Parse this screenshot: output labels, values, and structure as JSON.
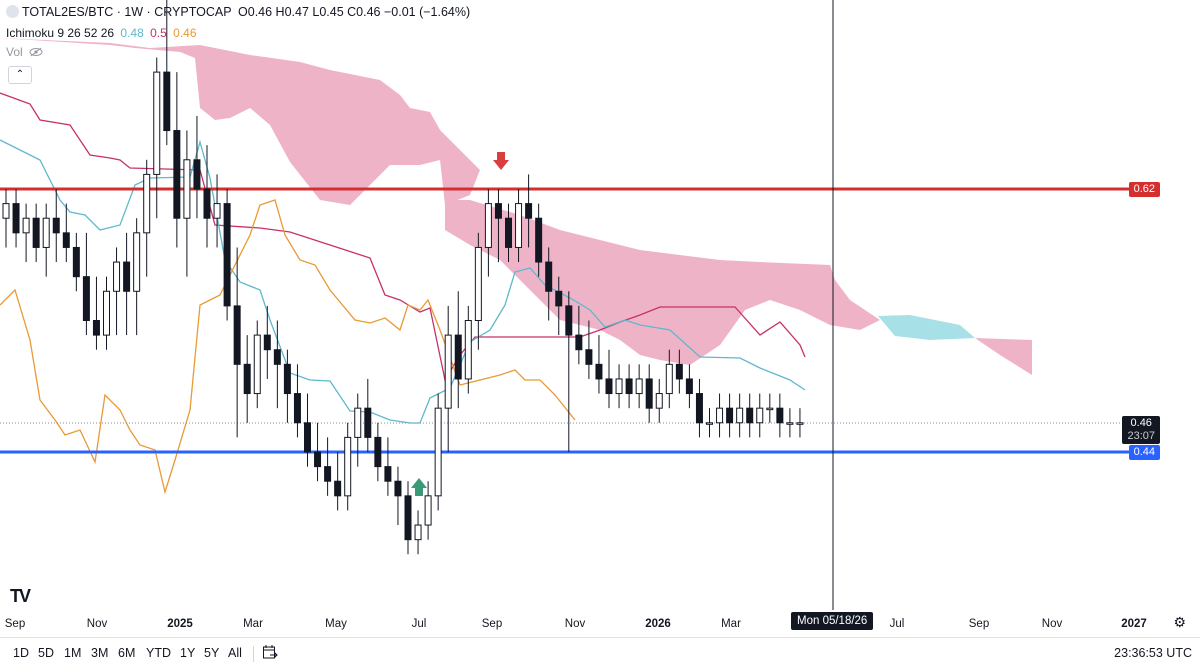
{
  "header": {
    "symbol": "TOTAL2ES/BTC · 1W · CRYPTOCAP",
    "ohlc": "O0.46 H0.47 L0.45 C0.46 −0.01 (−1.64%)",
    "indicator_name": "Ichimoku 9 26 52 26",
    "indicator_v1": "0.48",
    "indicator_v2": "0.5",
    "indicator_v3": "0.46",
    "vol_label": "Vol"
  },
  "price_tags": {
    "red_level": "0.62",
    "current_price": "0.46",
    "countdown": "23:07",
    "blue_level": "0.44"
  },
  "x_axis": [
    {
      "label": "Sep",
      "bold": false
    },
    {
      "label": "Nov",
      "bold": false
    },
    {
      "label": "2025",
      "bold": true
    },
    {
      "label": "Mar",
      "bold": false
    },
    {
      "label": "May",
      "bold": false
    },
    {
      "label": "Jul",
      "bold": false
    },
    {
      "label": "Sep",
      "bold": false
    },
    {
      "label": "Nov",
      "bold": false
    },
    {
      "label": "2026",
      "bold": true
    },
    {
      "label": "Mar",
      "bold": false
    },
    {
      "label": "Jul",
      "bold": false
    },
    {
      "label": "Sep",
      "bold": false
    },
    {
      "label": "Nov",
      "bold": false
    },
    {
      "label": "2027",
      "bold": true
    }
  ],
  "crosshair_date": "Mon 05/18/26",
  "ranges": [
    "1D",
    "5D",
    "1M",
    "3M",
    "6M",
    "YTD",
    "1Y",
    "5Y",
    "All"
  ],
  "clock": "23:36:53 UTC",
  "logo": "TV",
  "colors": {
    "red_line": "#d32f2f",
    "blue_line": "#2962ff",
    "cloud_bear": "#efb3c8",
    "cloud_bull": "#a8e0e8",
    "tenkan": "#5fb8cc",
    "kijun": "#c8306a",
    "chikou": "#e89a35",
    "arrow_down": "#d84040",
    "arrow_up": "#3a9a78"
  },
  "chart_data": {
    "type": "candlestick",
    "horizontal_levels": [
      0.62,
      0.44
    ],
    "candles_ohlc": [
      [
        0.6,
        0.62,
        0.58,
        0.61
      ],
      [
        0.61,
        0.62,
        0.58,
        0.59
      ],
      [
        0.59,
        0.61,
        0.57,
        0.6
      ],
      [
        0.6,
        0.61,
        0.57,
        0.58
      ],
      [
        0.58,
        0.61,
        0.56,
        0.6
      ],
      [
        0.6,
        0.62,
        0.57,
        0.59
      ],
      [
        0.59,
        0.61,
        0.57,
        0.58
      ],
      [
        0.58,
        0.59,
        0.55,
        0.56
      ],
      [
        0.56,
        0.59,
        0.52,
        0.53
      ],
      [
        0.53,
        0.56,
        0.51,
        0.52
      ],
      [
        0.52,
        0.56,
        0.51,
        0.55
      ],
      [
        0.55,
        0.58,
        0.52,
        0.57
      ],
      [
        0.57,
        0.59,
        0.52,
        0.55
      ],
      [
        0.55,
        0.6,
        0.52,
        0.59
      ],
      [
        0.59,
        0.64,
        0.56,
        0.63
      ],
      [
        0.63,
        0.71,
        0.6,
        0.7
      ],
      [
        0.7,
        0.75,
        0.65,
        0.66
      ],
      [
        0.66,
        0.7,
        0.58,
        0.6
      ],
      [
        0.6,
        0.66,
        0.56,
        0.64
      ],
      [
        0.64,
        0.67,
        0.6,
        0.62
      ],
      [
        0.62,
        0.65,
        0.58,
        0.6
      ],
      [
        0.6,
        0.63,
        0.58,
        0.61
      ],
      [
        0.61,
        0.62,
        0.53,
        0.54
      ],
      [
        0.54,
        0.58,
        0.45,
        0.5
      ],
      [
        0.5,
        0.52,
        0.46,
        0.48
      ],
      [
        0.48,
        0.53,
        0.47,
        0.52
      ],
      [
        0.52,
        0.54,
        0.49,
        0.51
      ],
      [
        0.51,
        0.53,
        0.47,
        0.5
      ],
      [
        0.5,
        0.51,
        0.46,
        0.48
      ],
      [
        0.48,
        0.5,
        0.45,
        0.46
      ],
      [
        0.46,
        0.48,
        0.43,
        0.44
      ],
      [
        0.44,
        0.46,
        0.42,
        0.43
      ],
      [
        0.43,
        0.45,
        0.41,
        0.42
      ],
      [
        0.42,
        0.44,
        0.4,
        0.41
      ],
      [
        0.41,
        0.46,
        0.4,
        0.45
      ],
      [
        0.45,
        0.48,
        0.43,
        0.47
      ],
      [
        0.47,
        0.49,
        0.44,
        0.45
      ],
      [
        0.45,
        0.46,
        0.42,
        0.43
      ],
      [
        0.43,
        0.45,
        0.41,
        0.42
      ],
      [
        0.42,
        0.43,
        0.39,
        0.41
      ],
      [
        0.41,
        0.42,
        0.37,
        0.38
      ],
      [
        0.38,
        0.4,
        0.37,
        0.39
      ],
      [
        0.39,
        0.42,
        0.38,
        0.41
      ],
      [
        0.41,
        0.48,
        0.4,
        0.47
      ],
      [
        0.47,
        0.54,
        0.44,
        0.52
      ],
      [
        0.52,
        0.55,
        0.47,
        0.49
      ],
      [
        0.49,
        0.54,
        0.48,
        0.53
      ],
      [
        0.53,
        0.59,
        0.51,
        0.58
      ],
      [
        0.58,
        0.62,
        0.56,
        0.61
      ],
      [
        0.61,
        0.62,
        0.57,
        0.6
      ],
      [
        0.6,
        0.61,
        0.57,
        0.58
      ],
      [
        0.58,
        0.62,
        0.57,
        0.61
      ],
      [
        0.61,
        0.63,
        0.58,
        0.6
      ],
      [
        0.6,
        0.61,
        0.56,
        0.57
      ],
      [
        0.57,
        0.58,
        0.53,
        0.55
      ],
      [
        0.55,
        0.56,
        0.52,
        0.54
      ],
      [
        0.54,
        0.55,
        0.44,
        0.52
      ],
      [
        0.52,
        0.54,
        0.5,
        0.51
      ],
      [
        0.51,
        0.53,
        0.49,
        0.5
      ],
      [
        0.5,
        0.52,
        0.48,
        0.49
      ],
      [
        0.49,
        0.51,
        0.47,
        0.48
      ],
      [
        0.48,
        0.5,
        0.47,
        0.49
      ],
      [
        0.49,
        0.5,
        0.47,
        0.48
      ],
      [
        0.48,
        0.5,
        0.47,
        0.49
      ],
      [
        0.49,
        0.5,
        0.46,
        0.47
      ],
      [
        0.47,
        0.49,
        0.46,
        0.48
      ],
      [
        0.48,
        0.51,
        0.47,
        0.5
      ],
      [
        0.5,
        0.51,
        0.48,
        0.49
      ],
      [
        0.49,
        0.5,
        0.47,
        0.48
      ],
      [
        0.48,
        0.49,
        0.45,
        0.46
      ],
      [
        0.46,
        0.47,
        0.45,
        0.46
      ],
      [
        0.46,
        0.48,
        0.45,
        0.47
      ],
      [
        0.47,
        0.48,
        0.45,
        0.46
      ],
      [
        0.46,
        0.48,
        0.45,
        0.47
      ],
      [
        0.47,
        0.48,
        0.45,
        0.46
      ],
      [
        0.46,
        0.48,
        0.45,
        0.47
      ],
      [
        0.47,
        0.48,
        0.46,
        0.47
      ],
      [
        0.47,
        0.48,
        0.45,
        0.46
      ],
      [
        0.46,
        0.47,
        0.45,
        0.46
      ],
      [
        0.46,
        0.47,
        0.45,
        0.46
      ]
    ]
  }
}
